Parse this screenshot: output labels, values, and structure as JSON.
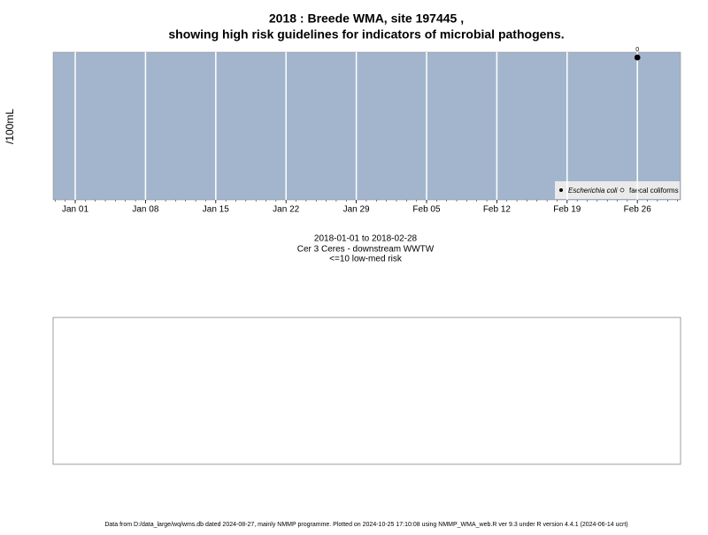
{
  "chart_data": {
    "type": "scatter",
    "title": "2018 : Breede WMA, site 197445 ,",
    "subtitle": "showing high risk guidelines for indicators of microbial pathogens.",
    "y_label": "/100mL",
    "xticks": [
      "Jan 01",
      "Jan 08",
      "Jan 15",
      "Jan 22",
      "Jan 29",
      "Feb 05",
      "Feb 12",
      "Feb 19",
      "Feb 26"
    ],
    "series": [
      {
        "name": "Escherichia coli",
        "color": "#000000",
        "x": [
          "Feb 26"
        ],
        "values": [
          0
        ]
      },
      {
        "name": "faecal coliforms",
        "color": "#ffffff",
        "x": [
          null
        ],
        "values": [
          null
        ]
      }
    ],
    "grid": true,
    "legend": "bottom-right",
    "captions": [
      "2018-01-01 to 2018-02-28",
      "Cer 3 Ceres - downstream WWTW",
      "<=10 low-med risk"
    ],
    "footer": "Data from D:/data_large/wq/wms.db dated 2024-08-27, mainly NMMP programme. Plotted on 2024-10-25 17:10:08 using NMMP_WMA_web.R ver 9.3 under R version 4.4.1 (2024-06-14 ucrt)"
  }
}
